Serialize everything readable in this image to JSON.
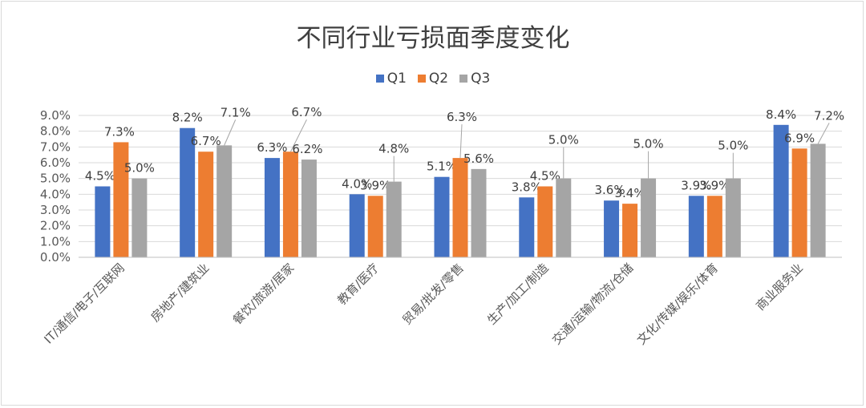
{
  "chart_data": {
    "type": "bar",
    "title": "不同行业亏损面季度变化",
    "categories": [
      "IT/通信/电子/互联网",
      "房地产/建筑业",
      "餐饮/旅游/居家",
      "教育/医疗",
      "贸易/批发/零售",
      "生产/加工/制造",
      "交通/运输/物流/仓储",
      "文化/传媒/娱乐/体育",
      "商业服务业"
    ],
    "series": [
      {
        "name": "Q1",
        "color": "#4472c4",
        "values": [
          4.5,
          8.2,
          6.3,
          4.0,
          5.1,
          3.8,
          3.6,
          3.9,
          8.4
        ],
        "labels": [
          "4.5%",
          "8.2%",
          "6.3%",
          "4.0%",
          "5.1%",
          "3.8%",
          "3.6%",
          "3.9%",
          "8.4%"
        ]
      },
      {
        "name": "Q2",
        "color": "#ed7d31",
        "values": [
          7.3,
          6.7,
          6.7,
          3.9,
          6.3,
          4.5,
          3.4,
          3.9,
          6.9
        ],
        "labels": [
          "7.3%",
          "6.7%",
          "6.7%",
          "3.9%",
          "6.3%",
          "4.5%",
          "3.4%",
          "3.9%",
          "6.9%"
        ]
      },
      {
        "name": "Q3",
        "color": "#a5a5a5",
        "values": [
          5.0,
          7.1,
          6.2,
          4.8,
          5.6,
          5.0,
          5.0,
          5.0,
          7.2
        ],
        "labels": [
          "5.0%",
          "7.1%",
          "6.2%",
          "4.8%",
          "5.6%",
          "5.0%",
          "5.0%",
          "5.0%",
          "7.2%"
        ]
      }
    ],
    "yticks": [
      "0.0%",
      "1.0%",
      "2.0%",
      "3.0%",
      "4.0%",
      "5.0%",
      "6.0%",
      "7.0%",
      "8.0%",
      "9.0%"
    ],
    "ylim": [
      0,
      9
    ],
    "legend_position": "top",
    "grid": true
  }
}
